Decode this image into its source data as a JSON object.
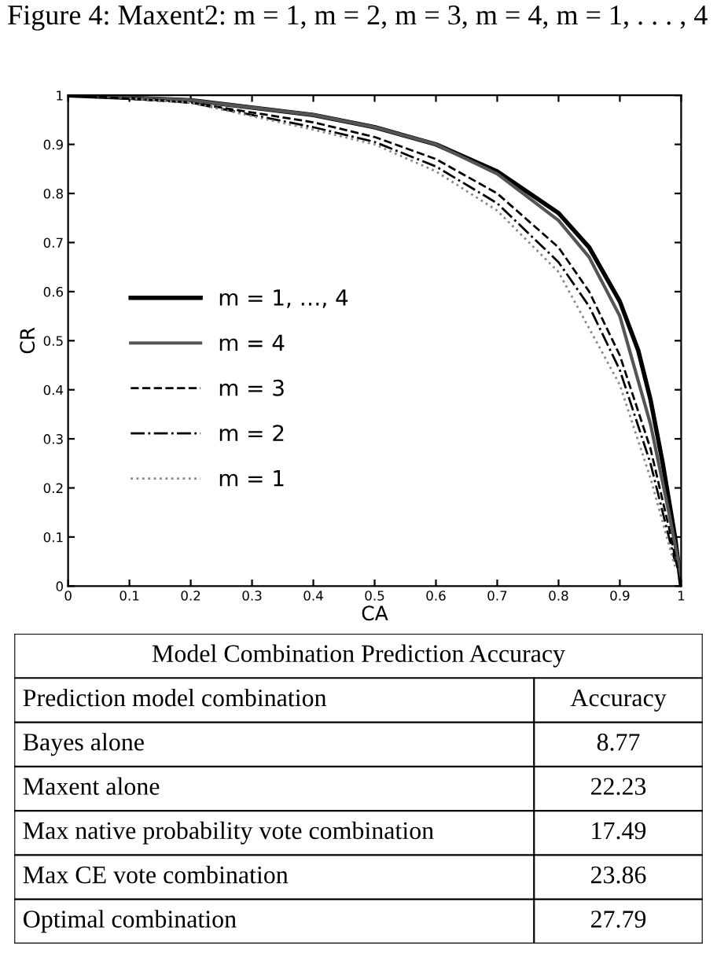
{
  "chart_data": [
    {
      "type": "line",
      "title": "Figure 4: Maxent2: m = 1, m = 2, m = 3, m = 4, m = 1, . . . , 4",
      "xlabel": "CA",
      "ylabel": "CR",
      "xlim": [
        0,
        1
      ],
      "ylim": [
        0,
        1
      ],
      "xticks": [
        0,
        0.1,
        0.2,
        0.3,
        0.4,
        0.5,
        0.6,
        0.7,
        0.8,
        0.9,
        1
      ],
      "yticks": [
        0,
        0.1,
        0.2,
        0.3,
        0.4,
        0.5,
        0.6,
        0.7,
        0.8,
        0.9,
        1
      ],
      "legend": "left",
      "grid": false,
      "series": [
        {
          "name": "m = 1, …, 4",
          "color": "#000000",
          "line_style": "solid",
          "x": [
            0,
            0.2,
            0.4,
            0.5,
            0.6,
            0.7,
            0.8,
            0.85,
            0.9,
            0.93,
            0.95,
            0.97,
            0.99,
            1
          ],
          "values": [
            1,
            0.99,
            0.96,
            0.935,
            0.9,
            0.845,
            0.76,
            0.69,
            0.58,
            0.48,
            0.38,
            0.25,
            0.1,
            0
          ]
        },
        {
          "name": "m = 4",
          "color": "#555555",
          "line_style": "solid",
          "x": [
            0.05,
            0.2,
            0.4,
            0.5,
            0.6,
            0.7,
            0.8,
            0.85,
            0.9,
            0.95,
            0.98,
            1
          ],
          "values": [
            0.998,
            0.99,
            0.96,
            0.935,
            0.9,
            0.84,
            0.745,
            0.67,
            0.55,
            0.33,
            0.15,
            0.02
          ]
        },
        {
          "name": "m = 3",
          "color": "#000000",
          "line_style": "dashed",
          "x": [
            0.05,
            0.2,
            0.4,
            0.5,
            0.6,
            0.7,
            0.8,
            0.85,
            0.9,
            0.95,
            0.98,
            0.995
          ],
          "values": [
            0.997,
            0.985,
            0.945,
            0.915,
            0.87,
            0.8,
            0.69,
            0.6,
            0.47,
            0.28,
            0.12,
            0.03
          ]
        },
        {
          "name": "m = 2",
          "color": "#000000",
          "line_style": "dashdot",
          "x": [
            0.1,
            0.2,
            0.4,
            0.5,
            0.6,
            0.7,
            0.8,
            0.85,
            0.9,
            0.95,
            0.99
          ],
          "values": [
            0.995,
            0.985,
            0.935,
            0.905,
            0.855,
            0.78,
            0.66,
            0.57,
            0.44,
            0.25,
            0.05
          ]
        },
        {
          "name": "m = 1",
          "color": "#888888",
          "line_style": "dotted",
          "x": [
            0.1,
            0.2,
            0.4,
            0.5,
            0.6,
            0.7,
            0.8,
            0.9,
            0.95,
            0.99
          ],
          "values": [
            0.994,
            0.985,
            0.93,
            0.9,
            0.845,
            0.765,
            0.64,
            0.41,
            0.22,
            0.04
          ]
        }
      ]
    },
    {
      "type": "other",
      "title": "Model Combination Prediction Accuracy",
      "annotations": [
        "Prediction model combination",
        "Accuracy"
      ],
      "data_labels": true,
      "categories": [
        "Bayes alone",
        "Maxent alone",
        "Max native probability vote combination",
        "Max CE vote combination",
        "Optimal combination"
      ],
      "values": [
        8.77,
        22.23,
        17.49,
        23.86,
        27.79
      ]
    }
  ]
}
